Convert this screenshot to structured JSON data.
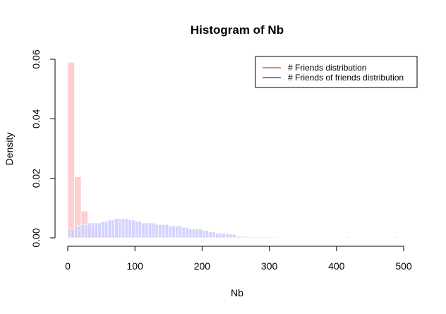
{
  "chart_data": {
    "type": "bar",
    "title": "Histogram of Nb",
    "xlabel": "Nb",
    "ylabel": "Density",
    "xlim": [
      -5,
      500
    ],
    "ylim": [
      0,
      0.06
    ],
    "x_ticks": [
      0,
      100,
      200,
      300,
      400,
      500
    ],
    "x_tick_labels": [
      "0",
      "100",
      "200",
      "300",
      "400",
      "500"
    ],
    "y_ticks": [
      0,
      0.02,
      0.04,
      0.06
    ],
    "y_tick_labels": [
      "0.00",
      "0.02",
      "0.04",
      "0.06"
    ],
    "legend_position": "top-right",
    "series": [
      {
        "name": "# Friends distribution",
        "line_color": "#cc0000",
        "fill_color": "#ffcccc",
        "bin_width": 10,
        "bins_start": [
          0,
          10,
          20,
          30,
          40,
          50,
          60,
          70,
          80,
          90,
          100,
          110,
          120,
          130,
          140,
          150,
          160,
          170,
          180,
          190,
          200,
          210,
          220,
          230,
          240,
          250,
          260,
          270,
          280,
          290,
          300,
          310,
          320,
          410,
          480
        ],
        "values": [
          0.059,
          0.0205,
          0.009,
          0.0035,
          0.0025,
          0.0015,
          0.0007,
          0.0005,
          0.0004,
          0.0003,
          0.0003,
          0.0002,
          0.0002,
          0.0002,
          0.0002,
          0.0002,
          0.0001,
          0.0001,
          0.0001,
          0.0001,
          0.0001,
          0.0001,
          0.0001,
          0.0001,
          0.0001,
          0.0001,
          0.0001,
          0.0001,
          0.0001,
          0.0001,
          0.0001,
          0.0001,
          0.0001,
          0.0001,
          0.0001
        ]
      },
      {
        "name": "# Friends of friends distribution",
        "line_color": "#000099",
        "fill_color": "#ccccff",
        "bin_width": 5,
        "bins_start": [
          0,
          5,
          10,
          15,
          20,
          25,
          30,
          35,
          40,
          45,
          50,
          55,
          60,
          65,
          70,
          75,
          80,
          85,
          90,
          95,
          100,
          105,
          110,
          115,
          120,
          125,
          130,
          135,
          140,
          145,
          150,
          155,
          160,
          165,
          170,
          175,
          180,
          185,
          190,
          195,
          200,
          205,
          210,
          215,
          220,
          225,
          230,
          235,
          240,
          245,
          250,
          255,
          260,
          265,
          270,
          275,
          280,
          285,
          290,
          295,
          300,
          305,
          310,
          315,
          415,
          485
        ],
        "values": [
          0.003,
          0.003,
          0.004,
          0.004,
          0.0045,
          0.0045,
          0.005,
          0.005,
          0.005,
          0.005,
          0.0055,
          0.0055,
          0.006,
          0.006,
          0.0065,
          0.0065,
          0.0065,
          0.0065,
          0.006,
          0.006,
          0.0055,
          0.0055,
          0.005,
          0.005,
          0.005,
          0.005,
          0.0045,
          0.0045,
          0.0045,
          0.0045,
          0.004,
          0.004,
          0.004,
          0.004,
          0.0035,
          0.0035,
          0.003,
          0.003,
          0.003,
          0.003,
          0.0025,
          0.0025,
          0.002,
          0.002,
          0.0015,
          0.0015,
          0.0015,
          0.0015,
          0.0012,
          0.0012,
          0.0005,
          0.0005,
          0.0004,
          0.0004,
          0.0003,
          0.0003,
          0.0003,
          0.0003,
          0.0003,
          0.0003,
          0.0003,
          0.0003,
          0.0002,
          0.0002,
          0.0003,
          0.0003
        ]
      }
    ]
  }
}
